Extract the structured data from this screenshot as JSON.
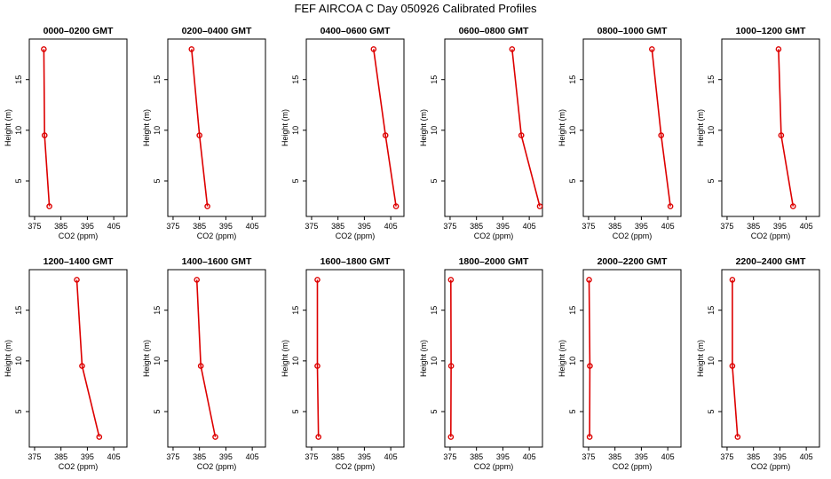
{
  "figure": {
    "title": "FEF AIRCOA C  Day 050926  Calibrated Profiles"
  },
  "chart_data": {
    "type": "line",
    "xlabel": "CO2 (ppm)",
    "ylabel": "Height (m)",
    "xlim": [
      373,
      410
    ],
    "ylim": [
      1.5,
      19
    ],
    "xticks": [
      375,
      385,
      395,
      405
    ],
    "yticks": [
      5,
      10,
      15
    ],
    "panels": [
      {
        "title": "0000–0200 GMT",
        "x": [
          378.5,
          378.8,
          380.6
        ],
        "y": [
          18,
          9.5,
          2.5
        ]
      },
      {
        "title": "0200–0400 GMT",
        "x": [
          382.0,
          385.0,
          388.0
        ],
        "y": [
          18,
          9.5,
          2.5
        ]
      },
      {
        "title": "0400–0600 GMT",
        "x": [
          398.5,
          403.0,
          407.0
        ],
        "y": [
          18,
          9.5,
          2.5
        ]
      },
      {
        "title": "0600–0800 GMT",
        "x": [
          398.5,
          402.0,
          409.0
        ],
        "y": [
          18,
          9.5,
          2.5
        ]
      },
      {
        "title": "0800–1000 GMT",
        "x": [
          399.0,
          402.5,
          406.0
        ],
        "y": [
          18,
          9.5,
          2.5
        ]
      },
      {
        "title": "1000–1200 GMT",
        "x": [
          394.5,
          395.5,
          400.0
        ],
        "y": [
          18,
          9.5,
          2.5
        ]
      },
      {
        "title": "1200–1400 GMT",
        "x": [
          391.0,
          393.0,
          399.5
        ],
        "y": [
          18,
          9.5,
          2.5
        ]
      },
      {
        "title": "1400–1600 GMT",
        "x": [
          384.0,
          385.5,
          391.0
        ],
        "y": [
          18,
          9.5,
          2.5
        ]
      },
      {
        "title": "1600–1800 GMT",
        "x": [
          377.2,
          377.2,
          377.6
        ],
        "y": [
          18,
          9.5,
          2.5
        ]
      },
      {
        "title": "1800–2000 GMT",
        "x": [
          375.3,
          375.4,
          375.3
        ],
        "y": [
          18,
          9.5,
          2.5
        ]
      },
      {
        "title": "2000–2200 GMT",
        "x": [
          375.2,
          375.5,
          375.4
        ],
        "y": [
          18,
          9.5,
          2.5
        ]
      },
      {
        "title": "2200–2400 GMT",
        "x": [
          377.0,
          377.0,
          379.0
        ],
        "y": [
          18,
          9.5,
          2.5
        ]
      }
    ]
  }
}
